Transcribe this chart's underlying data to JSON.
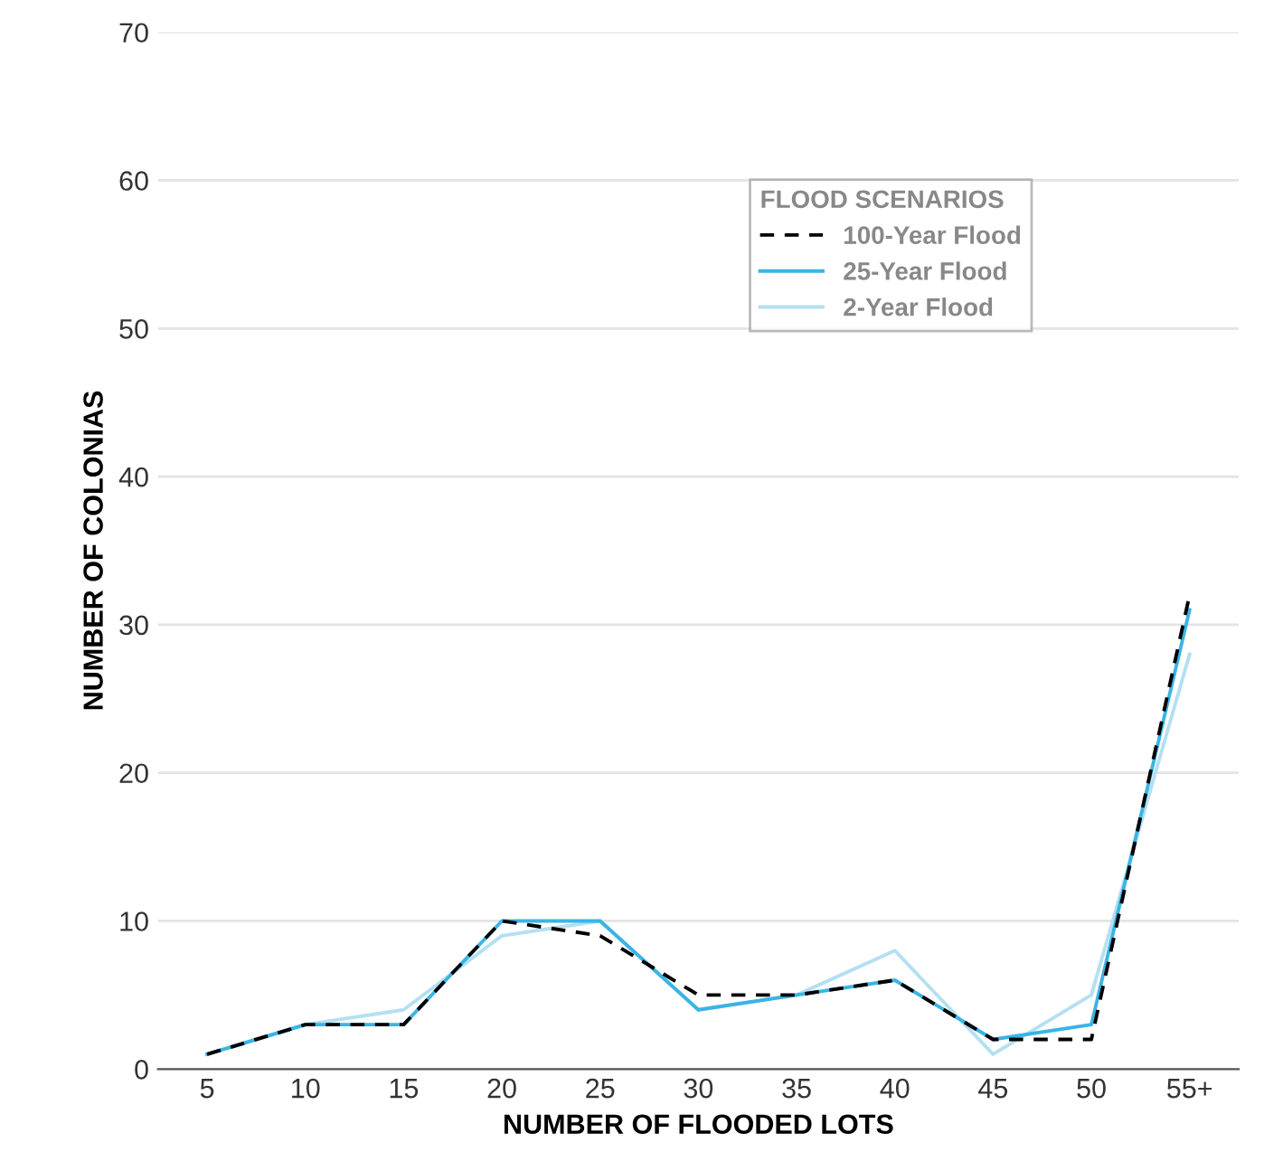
{
  "chart_data": {
    "type": "line",
    "xlabel": "NUMBER OF FLOODED LOTS",
    "ylabel": "NUMBER OF COLONIAS",
    "legend_title": "FLOOD SCENARIOS",
    "categories": [
      "5",
      "10",
      "15",
      "20",
      "25",
      "30",
      "35",
      "40",
      "45",
      "50",
      "55+"
    ],
    "series": [
      {
        "name": "100-Year Flood",
        "color": "#000000",
        "line_style": "dashed",
        "values": [
          1,
          3,
          3,
          10,
          9,
          5,
          5,
          6,
          2,
          2,
          32
        ]
      },
      {
        "name": "25-Year Flood",
        "color": "#3ab4e6",
        "line_style": "solid",
        "values": [
          1,
          3,
          3,
          10,
          10,
          4,
          5,
          6,
          2,
          3,
          31
        ]
      },
      {
        "name": "2-Year Flood",
        "color": "#b3e0f2",
        "line_style": "solid",
        "values": [
          1,
          3,
          4,
          9,
          10,
          4,
          5,
          8,
          1,
          5,
          28
        ]
      }
    ],
    "ylim": [
      0,
      70
    ],
    "yticks": [
      0,
      10,
      20,
      30,
      40,
      50,
      60,
      70
    ],
    "grid": "y",
    "legend": "top right",
    "marker": "none"
  }
}
